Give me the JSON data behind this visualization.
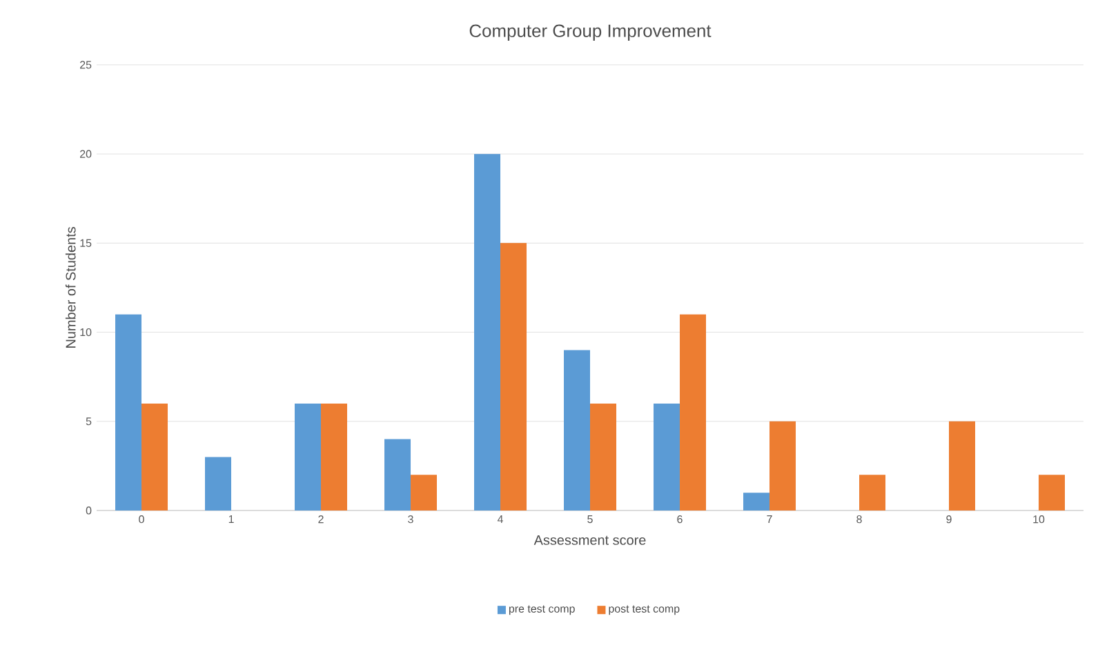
{
  "chart_data": {
    "type": "bar",
    "title": "Computer Group Improvement",
    "xlabel": "Assessment score",
    "ylabel": "Number of Students",
    "categories": [
      "0",
      "1",
      "2",
      "3",
      "4",
      "5",
      "6",
      "7",
      "8",
      "9",
      "10"
    ],
    "series": [
      {
        "name": "pre test comp",
        "color": "#5b9bd5",
        "values": [
          11,
          3,
          6,
          4,
          20,
          9,
          6,
          1,
          0,
          0,
          0
        ]
      },
      {
        "name": "post test comp",
        "color": "#ed7d31",
        "values": [
          6,
          0,
          6,
          2,
          15,
          6,
          11,
          5,
          2,
          5,
          2
        ]
      }
    ],
    "ylim": [
      0,
      25
    ],
    "yticks": [
      0,
      5,
      10,
      15,
      20,
      25
    ],
    "grid": "y",
    "legend": "bottom"
  }
}
